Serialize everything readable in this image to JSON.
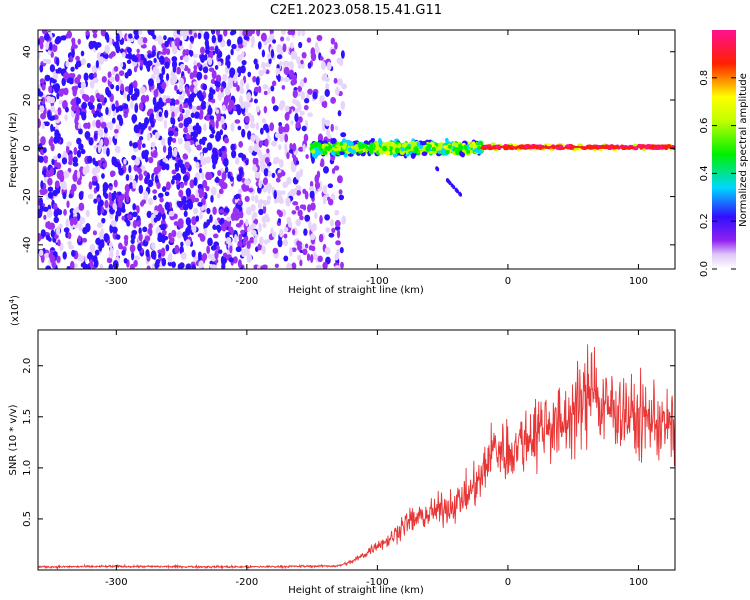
{
  "title": "C2E1.2023.058.15.41.G11",
  "chart_data": [
    {
      "type": "heatmap",
      "xlabel": "Height of straight line (km)",
      "ylabel": "Frequency (Hz)",
      "xlim": [
        -360,
        128
      ],
      "ylim": [
        -50,
        49
      ],
      "xticks": [
        -300,
        -200,
        -100,
        0,
        100
      ],
      "yticks": [
        -40,
        -20,
        0,
        20,
        40
      ],
      "colorbar": {
        "label": "Normalized spectral amplitude",
        "range": [
          0.0,
          1.0
        ],
        "ticks": [
          0.0,
          0.2,
          0.4,
          0.6,
          0.8
        ],
        "tick_labels": [
          "0.0",
          "0.2",
          "0.4",
          "0.6",
          "0.8"
        ],
        "colormap": "rainbow (white-violet-blue-cyan-green-yellow-red-magenta)"
      },
      "features": [
        {
          "description": "broad noisy violet scatter",
          "x_range": [
            -360,
            -125
          ],
          "freq_range": [
            -50,
            49
          ],
          "amplitude": 0.05
        },
        {
          "description": "concentrated band near zero frequency",
          "x_range": [
            -150,
            -20
          ],
          "freq_range": [
            -5,
            6
          ],
          "amplitude": 0.5
        },
        {
          "description": "narrow high-amplitude line at zero frequency",
          "x_range": [
            -20,
            128
          ],
          "freq_range": [
            -1.5,
            2
          ],
          "amplitude": 0.85
        },
        {
          "description": "diagonal descending trace",
          "x_points": [
            -55,
            -35
          ],
          "freq_points": [
            -8,
            -20
          ],
          "amplitude": 0.1
        }
      ]
    },
    {
      "type": "line",
      "xlabel": "Height of straight line (km)",
      "ylabel": "SNR (10 * v/v)",
      "y_multiplier_label": "(x10",
      "y_multiplier_exp": "4",
      "y_multiplier_close": ")",
      "xlim": [
        -360,
        128
      ],
      "ylim": [
        0,
        23500
      ],
      "xticks": [
        -300,
        -200,
        -100,
        0,
        100
      ],
      "yticks": [
        5000,
        10000,
        15000,
        20000
      ],
      "ytick_labels": [
        "0.5",
        "1.0",
        "1.5",
        "2.0"
      ],
      "series": [
        {
          "color": "#e83535",
          "x": [
            -360,
            -300,
            -200,
            -130,
            -120,
            -110,
            -100,
            -90,
            -80,
            -70,
            -60,
            -50,
            -40,
            -30,
            -20,
            -15,
            -10,
            0,
            10,
            20,
            30,
            40,
            50,
            60,
            65,
            70,
            80,
            90,
            100,
            110,
            120,
            128
          ],
          "y": [
            300,
            350,
            300,
            400,
            800,
            1500,
            2500,
            3000,
            4500,
            5000,
            5500,
            6000,
            6500,
            7500,
            9000,
            11000,
            12000,
            11500,
            12500,
            13500,
            14500,
            14000,
            15500,
            16500,
            20000,
            15500,
            16000,
            15500,
            14500,
            15000,
            14000,
            14000
          ]
        }
      ]
    }
  ]
}
